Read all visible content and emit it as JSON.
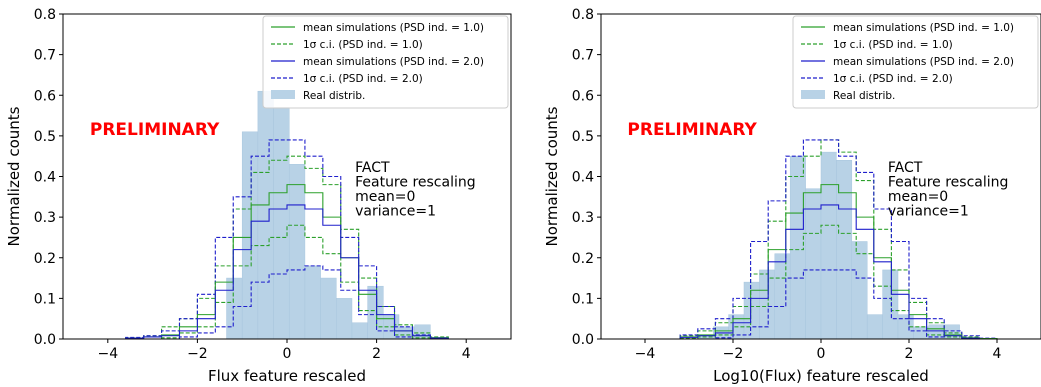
{
  "chart_data": [
    {
      "type": "histogram",
      "xlabel": "Flux feature rescaled",
      "ylabel": "Normalized counts",
      "xlim": [
        -5,
        5
      ],
      "ylim": [
        0,
        0.8
      ],
      "xticks": [
        -4,
        -2,
        0,
        2,
        4
      ],
      "xtick_labels": [
        "−4",
        "−2",
        "0",
        "2",
        "4"
      ],
      "yticks": [
        0.0,
        0.1,
        0.2,
        0.3,
        0.4,
        0.5,
        0.6,
        0.7,
        0.8
      ],
      "ytick_labels": [
        "0.0",
        "0.1",
        "0.2",
        "0.3",
        "0.4",
        "0.5",
        "0.6",
        "0.7",
        "0.8"
      ],
      "annotation_red": "PRELIMINARY",
      "annotation_lines": [
        "FACT",
        "Feature rescaling",
        "mean=0",
        "variance=1"
      ],
      "legend_position": "top-right",
      "legend": [
        {
          "label": "mean simulations (PSD ind. = 1.0)",
          "style": "solid",
          "color": "#2ca02c"
        },
        {
          "label": "1σ c.i. (PSD ind. = 1.0)",
          "style": "dashed",
          "color": "#2ca02c"
        },
        {
          "label": "mean simulations (PSD ind. = 2.0)",
          "style": "solid",
          "color": "#1f1fcc"
        },
        {
          "label": "1σ c.i. (PSD ind. = 2.0)",
          "style": "dashed",
          "color": "#1f1fcc"
        },
        {
          "label": "Real distrib.",
          "style": "bar",
          "color": "#b8d2e6"
        }
      ],
      "real": {
        "edges": [
          -1.35,
          -1.0,
          -0.65,
          -0.3,
          0.05,
          0.4,
          0.75,
          1.1,
          1.45,
          1.8,
          2.15,
          2.5,
          2.85,
          3.2
        ],
        "values": [
          0.15,
          0.51,
          0.61,
          0.57,
          0.43,
          0.18,
          0.15,
          0.1,
          0.04,
          0.13,
          0.06,
          0.03,
          0.035
        ]
      },
      "sim_edges": [
        -4.0,
        -3.6,
        -3.2,
        -2.8,
        -2.4,
        -2.0,
        -1.6,
        -1.2,
        -0.8,
        -0.4,
        0.0,
        0.4,
        0.8,
        1.2,
        1.6,
        2.0,
        2.4,
        2.8,
        3.2,
        3.6
      ],
      "green_mean": [
        0.0,
        0.002,
        0.005,
        0.01,
        0.03,
        0.06,
        0.14,
        0.25,
        0.33,
        0.36,
        0.38,
        0.36,
        0.3,
        0.2,
        0.11,
        0.05,
        0.02,
        0.008,
        0.003
      ],
      "green_upper": [
        0.0,
        0.003,
        0.008,
        0.03,
        0.05,
        0.1,
        0.18,
        0.32,
        0.41,
        0.44,
        0.45,
        0.42,
        0.38,
        0.27,
        0.15,
        0.08,
        0.035,
        0.015,
        0.005
      ],
      "green_lower": [
        0.0,
        0.0,
        0.0,
        0.003,
        0.015,
        0.03,
        0.09,
        0.18,
        0.23,
        0.25,
        0.28,
        0.25,
        0.21,
        0.14,
        0.07,
        0.03,
        0.01,
        0.003,
        0.0
      ],
      "blue_mean": [
        0.0,
        0.002,
        0.005,
        0.008,
        0.02,
        0.05,
        0.12,
        0.22,
        0.29,
        0.32,
        0.33,
        0.32,
        0.28,
        0.2,
        0.12,
        0.06,
        0.02,
        0.008,
        0.002
      ],
      "blue_upper": [
        0.0,
        0.004,
        0.008,
        0.02,
        0.05,
        0.11,
        0.25,
        0.35,
        0.45,
        0.49,
        0.49,
        0.45,
        0.4,
        0.25,
        0.18,
        0.08,
        0.03,
        0.01,
        0.003
      ],
      "blue_lower": [
        0.0,
        0.0,
        0.0,
        0.0,
        0.005,
        0.015,
        0.03,
        0.08,
        0.14,
        0.16,
        0.17,
        0.18,
        0.17,
        0.12,
        0.06,
        0.02,
        0.005,
        0.0,
        0.0
      ]
    },
    {
      "type": "histogram",
      "xlabel": "Log10(Flux) feature rescaled",
      "ylabel": "Normalized counts",
      "xlim": [
        -5,
        5
      ],
      "ylim": [
        0,
        0.8
      ],
      "xticks": [
        -4,
        -2,
        0,
        2,
        4
      ],
      "xtick_labels": [
        "−4",
        "−2",
        "0",
        "2",
        "4"
      ],
      "yticks": [
        0.0,
        0.1,
        0.2,
        0.3,
        0.4,
        0.5,
        0.6,
        0.7,
        0.8
      ],
      "ytick_labels": [
        "0.0",
        "0.1",
        "0.2",
        "0.3",
        "0.4",
        "0.5",
        "0.6",
        "0.7",
        "0.8"
      ],
      "annotation_red": "PRELIMINARY",
      "annotation_lines": [
        "FACT",
        "Feature rescaling",
        "mean=0",
        "variance=1"
      ],
      "legend_position": "top-right",
      "legend": [
        {
          "label": "mean simulations (PSD ind. = 1.0)",
          "style": "solid",
          "color": "#2ca02c"
        },
        {
          "label": "1σ c.i. (PSD ind. = 1.0)",
          "style": "dashed",
          "color": "#2ca02c"
        },
        {
          "label": "mean simulations (PSD ind. = 2.0)",
          "style": "solid",
          "color": "#1f1fcc"
        },
        {
          "label": "1σ c.i. (PSD ind. = 2.0)",
          "style": "dashed",
          "color": "#1f1fcc"
        },
        {
          "label": "Real distrib.",
          "style": "bar",
          "color": "#b8d2e6"
        }
      ],
      "real": {
        "edges": [
          -2.8,
          -2.45,
          -2.1,
          -1.75,
          -1.4,
          -1.05,
          -0.7,
          -0.35,
          0.0,
          0.35,
          0.7,
          1.05,
          1.4,
          1.75,
          2.1,
          2.45,
          2.8,
          3.15
        ],
        "values": [
          0.01,
          0.03,
          0.06,
          0.14,
          0.17,
          0.21,
          0.45,
          0.37,
          0.46,
          0.44,
          0.24,
          0.06,
          0.17,
          0.06,
          0.03,
          0.035,
          0.035
        ]
      },
      "sim_edges": [
        -3.6,
        -3.2,
        -2.8,
        -2.4,
        -2.0,
        -1.6,
        -1.2,
        -0.8,
        -0.4,
        0.0,
        0.4,
        0.8,
        1.2,
        1.6,
        2.0,
        2.4,
        2.8,
        3.2,
        3.6,
        4.0
      ],
      "green_mean": [
        0.0,
        0.005,
        0.01,
        0.02,
        0.05,
        0.12,
        0.22,
        0.31,
        0.36,
        0.38,
        0.36,
        0.3,
        0.2,
        0.12,
        0.06,
        0.025,
        0.01,
        0.003,
        0.001
      ],
      "green_upper": [
        0.0,
        0.008,
        0.02,
        0.04,
        0.08,
        0.16,
        0.29,
        0.4,
        0.45,
        0.49,
        0.46,
        0.39,
        0.27,
        0.17,
        0.09,
        0.04,
        0.015,
        0.005,
        0.0
      ],
      "green_lower": [
        0.0,
        0.002,
        0.005,
        0.01,
        0.03,
        0.08,
        0.15,
        0.22,
        0.26,
        0.28,
        0.26,
        0.21,
        0.13,
        0.07,
        0.03,
        0.01,
        0.005,
        0.0,
        0.0
      ],
      "blue_mean": [
        0.0,
        0.004,
        0.008,
        0.015,
        0.04,
        0.1,
        0.19,
        0.27,
        0.32,
        0.33,
        0.32,
        0.27,
        0.19,
        0.11,
        0.05,
        0.02,
        0.008,
        0.002,
        0.0
      ],
      "blue_upper": [
        0.0,
        0.01,
        0.025,
        0.05,
        0.1,
        0.24,
        0.34,
        0.45,
        0.49,
        0.49,
        0.45,
        0.41,
        0.32,
        0.24,
        0.1,
        0.05,
        0.02,
        0.008,
        0.002
      ],
      "blue_lower": [
        0.0,
        0.0,
        0.0,
        0.003,
        0.01,
        0.03,
        0.08,
        0.15,
        0.17,
        0.17,
        0.17,
        0.15,
        0.1,
        0.05,
        0.02,
        0.005,
        0.0,
        0.0,
        0.0
      ]
    }
  ]
}
